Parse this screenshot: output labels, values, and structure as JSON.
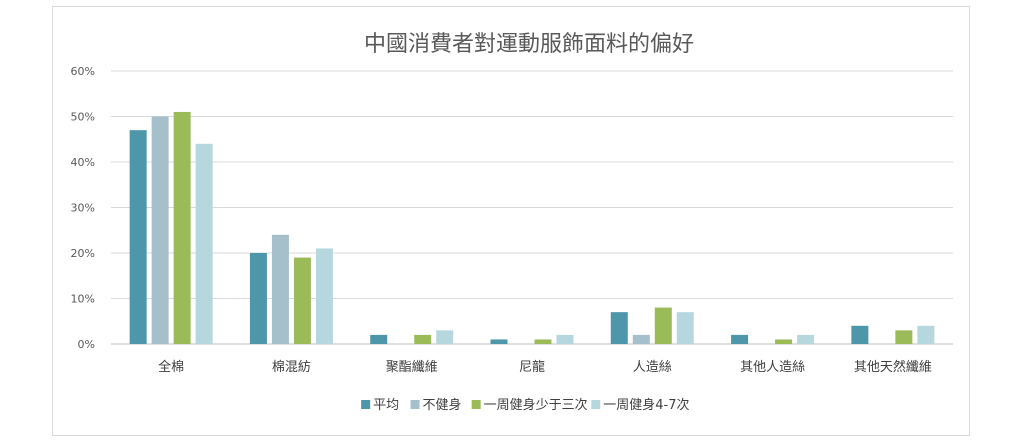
{
  "chart_data": {
    "type": "bar",
    "title": "中國消費者對運動服飾面料的偏好",
    "xlabel": "",
    "ylabel": "",
    "ylim": [
      0,
      60
    ],
    "yticks": [
      "0%",
      "10%",
      "20%",
      "30%",
      "40%",
      "50%",
      "60%"
    ],
    "grid": true,
    "legend_position": "bottom",
    "categories": [
      "全棉",
      "棉混紡",
      "聚酯纖維",
      "尼龍",
      "人造絲",
      "其他人造絲",
      "其他天然纖維"
    ],
    "series": [
      {
        "name": "平均",
        "color": "#4e97ab",
        "values": [
          47,
          20,
          2,
          1,
          7,
          2,
          4
        ]
      },
      {
        "name": "不健身",
        "color": "#a5bfcb",
        "values": [
          50,
          24,
          0,
          0,
          2,
          0,
          0
        ]
      },
      {
        "name": "一周健身少于三次",
        "color": "#9bbb59",
        "values": [
          51,
          19,
          2,
          1,
          8,
          1,
          3
        ]
      },
      {
        "name": "一周健身4-7次",
        "color": "#b7d7df",
        "values": [
          44,
          21,
          3,
          2,
          7,
          2,
          4
        ]
      }
    ]
  }
}
